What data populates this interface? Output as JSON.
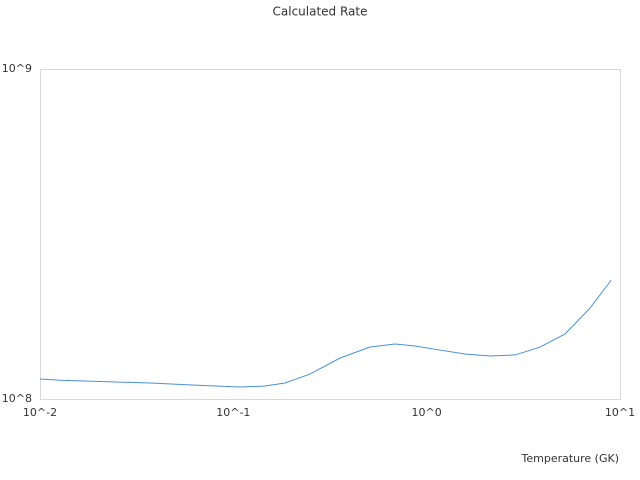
{
  "chart_data": {
    "type": "line",
    "title": "Calculated Rate",
    "x_label": "Temperature (GK)",
    "x": [
      0.01,
      0.0127,
      0.0204,
      0.0371,
      0.0673,
      0.108,
      0.146,
      0.185,
      0.249,
      0.356,
      0.509,
      0.686,
      0.87,
      1.17,
      1.58,
      2.13,
      2.87,
      3.86,
      5.2,
      7.0,
      9.0
    ],
    "series": [
      {
        "color": "#4a90d9",
        "values": [
          115000000,
          114000000,
          113000000,
          111800000,
          110000000,
          108700000,
          109500000,
          111800000,
          119000000,
          133000000,
          143700000,
          146800000,
          144700000,
          140700000,
          136900000,
          135000000,
          136000000,
          143700000,
          157400000,
          188700000,
          229000000
        ]
      }
    ],
    "xlim": [
      0.01,
      10
    ],
    "ylim": [
      100000000,
      1000000000
    ],
    "xticks": [
      {
        "value": 0.01,
        "label": "10^-2"
      },
      {
        "value": 0.1,
        "label": "10^-1"
      },
      {
        "value": 1,
        "label": "10^0"
      },
      {
        "value": 10,
        "label": "10^1"
      }
    ],
    "yticks": [
      {
        "value": 100000000,
        "label": "10^8"
      },
      {
        "value": 1000000000,
        "label": "10^9"
      }
    ],
    "xlog": true,
    "ylog": true
  }
}
